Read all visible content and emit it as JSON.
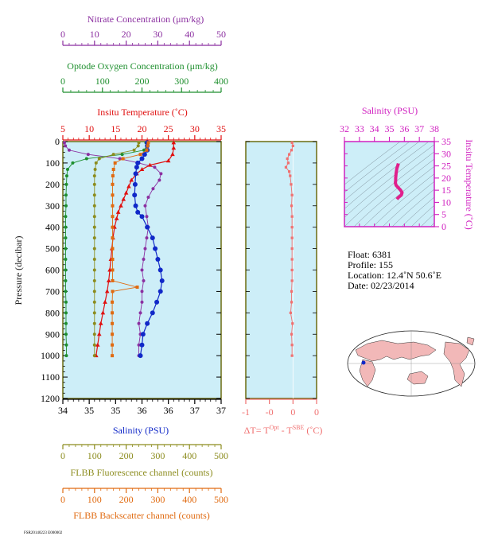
{
  "colors": {
    "nitrate": "#8b2fa0",
    "oxygen": "#1e8f2e",
    "temperature": "#e01010",
    "salinity": "#1028c8",
    "fluorescence": "#8c8c1e",
    "backscatter": "#e06a10",
    "delta_t": "#f07070",
    "magenta": "#d020c0",
    "panel_bg": "#cdeef8",
    "frame": "#6b6b10"
  },
  "labels": {
    "nitrate_title": "Nitrate Concentration (μm/kg)",
    "oxygen_title": "Optode Oxygen Concentration (μm/kg)",
    "temperature_title": "Insitu Temperature (˚C)",
    "pressure_title": "Pressure (decibar)",
    "salinity_title": "Salinity (PSU)",
    "fluorescence_title": "FLBB Fluorescence channel (counts)",
    "backscatter_title": "FLBB Backscatter channel (counts)",
    "deltat_title_prefix": "ΔT= T",
    "deltat_sup1": "Opt",
    "deltat_mid": " - T",
    "deltat_sup2": "SBE",
    "deltat_suffix": " (˚C)",
    "ts_salinity_title": "Salinity (PSU)",
    "ts_temperature_title": "Insitu Temperature (˚C)",
    "footer": "FSR20140223 E000002"
  },
  "info": {
    "float": "Float:  6381",
    "profile": "Profile:  155",
    "location": "Location:  12.4˚N  50.6˚E",
    "date": "Date:  02/23/2014"
  },
  "chart_data": [
    {
      "type": "line",
      "panel": "profiles",
      "axes": {
        "pressure": {
          "label": "Pressure (decibar)",
          "range": [
            0,
            1200
          ],
          "ticks": [
            0,
            100,
            200,
            300,
            400,
            500,
            600,
            700,
            800,
            900,
            1000,
            1100,
            1200
          ],
          "inverted": true
        },
        "nitrate": {
          "label": "Nitrate Concentration (μm/kg)",
          "range": [
            0,
            50
          ],
          "ticks": [
            0,
            10,
            20,
            30,
            40,
            50
          ]
        },
        "oxygen": {
          "label": "Optode Oxygen Concentration (μm/kg)",
          "range": [
            0,
            400
          ],
          "ticks": [
            0,
            100,
            200,
            300,
            400
          ]
        },
        "temperature": {
          "label": "Insitu Temperature (˚C)",
          "range": [
            5,
            35
          ],
          "ticks": [
            5,
            10,
            15,
            20,
            25,
            30,
            35
          ]
        },
        "salinity": {
          "label": "Salinity (PSU)",
          "range": [
            34,
            37
          ],
          "ticks": [
            34,
            34.5,
            35,
            35.5,
            36,
            36.5,
            37
          ],
          "tick_labels": [
            "34",
            "35",
            "35",
            "36",
            "36",
            "37",
            "37"
          ]
        },
        "fluorescence": {
          "label": "FLBB Fluorescence channel (counts)",
          "range": [
            0,
            500
          ],
          "ticks": [
            0,
            100,
            200,
            300,
            400,
            500
          ]
        },
        "backscatter": {
          "label": "FLBB Backscatter channel (counts)",
          "range": [
            0,
            500
          ],
          "ticks": [
            0,
            100,
            200,
            300,
            400,
            500
          ]
        }
      },
      "series": [
        {
          "name": "Nitrate",
          "axis": "nitrate",
          "pressure": [
            5,
            20,
            40,
            60,
            80,
            100,
            120,
            150,
            180,
            220,
            260,
            300,
            350,
            400,
            450,
            500,
            550,
            600,
            650,
            700,
            750,
            800,
            850,
            900,
            950,
            1000
          ],
          "values": [
            0.5,
            0.8,
            2,
            8,
            18,
            24,
            29,
            31,
            30.5,
            28.5,
            27,
            26,
            26.5,
            27,
            26.5,
            26,
            25.5,
            25,
            25.5,
            25,
            25,
            24.5,
            24,
            24.5,
            24,
            24
          ]
        },
        {
          "name": "Oxygen",
          "axis": "oxygen",
          "pressure": [
            5,
            20,
            40,
            60,
            80,
            100,
            130,
            160,
            200,
            250,
            300,
            350,
            400,
            450,
            500,
            550,
            600,
            650,
            700,
            750,
            800,
            850,
            900,
            950,
            1000
          ],
          "values": [
            210,
            212,
            205,
            150,
            60,
            25,
            12,
            10,
            9,
            8,
            8,
            7,
            7,
            7,
            7,
            7,
            7,
            7,
            7,
            8,
            8,
            8,
            8,
            9,
            9
          ]
        },
        {
          "name": "Temperature",
          "axis": "temperature",
          "pressure": [
            5,
            30,
            60,
            90,
            110,
            130,
            150,
            180,
            210,
            240,
            270,
            300,
            330,
            360,
            400,
            450,
            500,
            550,
            600,
            650,
            700,
            750,
            800,
            850,
            900,
            950,
            1000
          ],
          "values": [
            26,
            26,
            25.8,
            25,
            21.5,
            20,
            19,
            18,
            17.5,
            17,
            16.5,
            16,
            15.5,
            15.2,
            14.8,
            14.5,
            14.3,
            14.1,
            13.9,
            13.7,
            13.4,
            13,
            12.6,
            12.2,
            11.9,
            11.6,
            11.3
          ]
        },
        {
          "name": "Salinity",
          "axis": "salinity",
          "pressure": [
            5,
            20,
            40,
            60,
            80,
            100,
            120,
            150,
            200,
            250,
            300,
            330,
            350,
            400,
            450,
            500,
            550,
            600,
            650,
            700,
            750,
            800,
            850,
            900,
            950,
            1000
          ],
          "values": [
            35.6,
            35.6,
            35.6,
            35.55,
            35.5,
            35.42,
            35.4,
            35.38,
            35.37,
            35.36,
            35.38,
            35.42,
            35.5,
            35.6,
            35.7,
            35.75,
            35.8,
            35.85,
            35.88,
            35.85,
            35.78,
            35.7,
            35.6,
            35.52,
            35.5,
            35.47
          ]
        },
        {
          "name": "Fluorescence",
          "axis": "fluorescence",
          "pressure": [
            5,
            20,
            40,
            60,
            80,
            100,
            130,
            160,
            200,
            250,
            300,
            350,
            400,
            450,
            500,
            550,
            600,
            650,
            700,
            750,
            800,
            850,
            900,
            950,
            1000
          ],
          "values": [
            240,
            238,
            225,
            160,
            115,
            105,
            102,
            100,
            100,
            100,
            100,
            100,
            100,
            100,
            100,
            100,
            100,
            100,
            100,
            100,
            100,
            100,
            100,
            100,
            100
          ]
        },
        {
          "name": "Backscatter",
          "axis": "backscatter",
          "pressure": [
            5,
            20,
            40,
            60,
            80,
            100,
            130,
            160,
            200,
            250,
            300,
            350,
            400,
            450,
            500,
            550,
            600,
            650,
            680,
            700,
            750,
            800,
            850,
            900,
            950,
            1000
          ],
          "values": [
            270,
            268,
            265,
            245,
            190,
            165,
            160,
            158,
            157,
            157,
            157,
            157,
            157,
            157,
            157,
            157,
            157,
            157,
            235,
            157,
            156,
            156,
            156,
            156,
            156,
            156
          ]
        }
      ]
    },
    {
      "type": "line",
      "panel": "delta_t",
      "axes": {
        "x": {
          "label": "ΔT= T^Opt - T^SBE (˚C)",
          "range": [
            -1,
            0.5
          ],
          "ticks": [
            -1,
            -0.5,
            0,
            0.5
          ],
          "tick_labels": [
            "-1",
            "-0",
            "0",
            "0"
          ]
        },
        "pressure": {
          "range": [
            0,
            1200
          ],
          "inverted": true
        }
      },
      "series": [
        {
          "name": "ΔT",
          "pressure": [
            5,
            20,
            40,
            60,
            80,
            100,
            120,
            140,
            160,
            200,
            250,
            300,
            350,
            400,
            450,
            500,
            550,
            600,
            650,
            700,
            750,
            800,
            850,
            900,
            950,
            1000
          ],
          "values": [
            -0.02,
            0.0,
            -0.03,
            -0.08,
            -0.12,
            -0.1,
            -0.15,
            -0.08,
            -0.06,
            -0.04,
            -0.02,
            -0.03,
            -0.02,
            -0.02,
            -0.02,
            -0.02,
            -0.02,
            -0.02,
            -0.02,
            -0.03,
            -0.03,
            -0.05,
            -0.01,
            -0.03,
            -0.02,
            -0.02
          ]
        }
      ]
    },
    {
      "type": "line",
      "panel": "ts_diagram",
      "axes": {
        "x": {
          "label": "Salinity (PSU)",
          "range": [
            32,
            38
          ],
          "ticks": [
            32,
            33,
            34,
            35,
            36,
            37,
            38
          ]
        },
        "y": {
          "label": "Insitu Temperature (˚C)",
          "range": [
            0,
            35
          ],
          "ticks": [
            0,
            5,
            10,
            15,
            20,
            25,
            30,
            35
          ]
        }
      },
      "series": [
        {
          "name": "T-S",
          "x": [
            35.6,
            35.58,
            35.5,
            35.45,
            35.42,
            35.42,
            35.4,
            35.45,
            35.6,
            35.75,
            35.85,
            35.8,
            35.6,
            35.5
          ],
          "y": [
            26,
            25.5,
            24,
            22,
            20,
            19,
            18,
            17,
            16,
            15,
            14,
            13,
            12,
            11.3
          ]
        }
      ]
    }
  ]
}
